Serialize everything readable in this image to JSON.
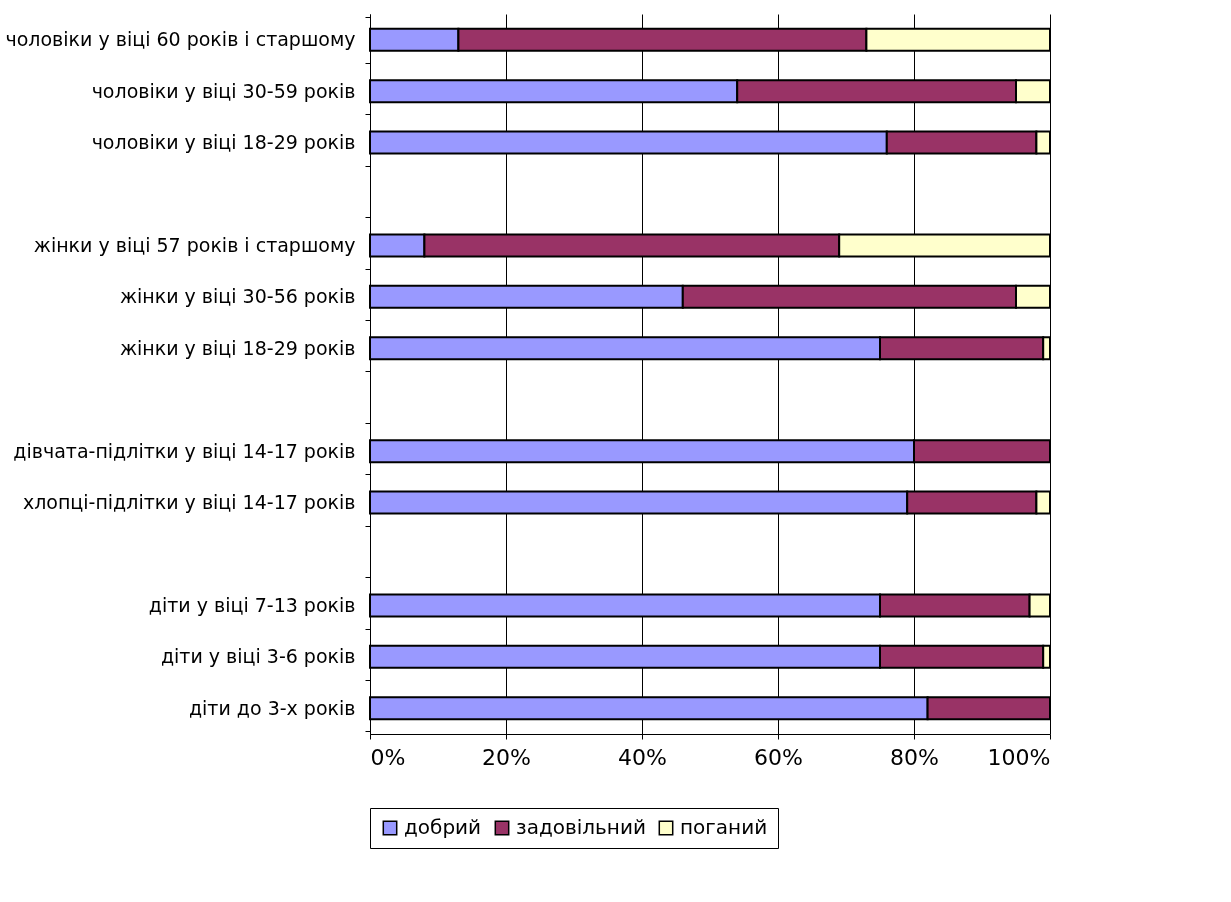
{
  "chart_data": {
    "type": "bar",
    "orientation": "horizontal",
    "stacked": true,
    "categories": [
      "чоловіки у віці 60 років і старшому",
      "чоловіки у віці 30-59 років",
      "чоловіки у віці 18-29 років",
      null,
      "жінки у віці 57 років і старшому",
      "жінки у віці 30-56 років",
      "жінки у віці 18-29 років",
      null,
      "дівчата-підлітки у віці 14-17 років",
      "хлопці-підлітки у віці 14-17 років",
      null,
      "діти у віці 7-13 років",
      "діти у віці 3-6 років",
      "діти до 3-х років"
    ],
    "series": [
      {
        "name": "добрий",
        "color": "#9999ff",
        "values": [
          13,
          54,
          76,
          null,
          8,
          46,
          75,
          null,
          80,
          79,
          null,
          75,
          75,
          82
        ]
      },
      {
        "name": "задовільний",
        "color": "#993366",
        "values": [
          60,
          41,
          22,
          null,
          61,
          49,
          24,
          null,
          20,
          19,
          null,
          22,
          24,
          18
        ]
      },
      {
        "name": "поганий",
        "color": "#ffffcc",
        "values": [
          27,
          5,
          2,
          null,
          31,
          5,
          1,
          null,
          0,
          2,
          null,
          3,
          1,
          0
        ]
      }
    ],
    "xlim": [
      0,
      100
    ],
    "xticks": [
      {
        "value": 0,
        "label": "0%"
      },
      {
        "value": 20,
        "label": "20%"
      },
      {
        "value": 40,
        "label": "40%"
      },
      {
        "value": 60,
        "label": "60%"
      },
      {
        "value": 80,
        "label": "80%"
      },
      {
        "value": 100,
        "label": "100%"
      }
    ],
    "grid": "x",
    "legend": "bottom"
  }
}
